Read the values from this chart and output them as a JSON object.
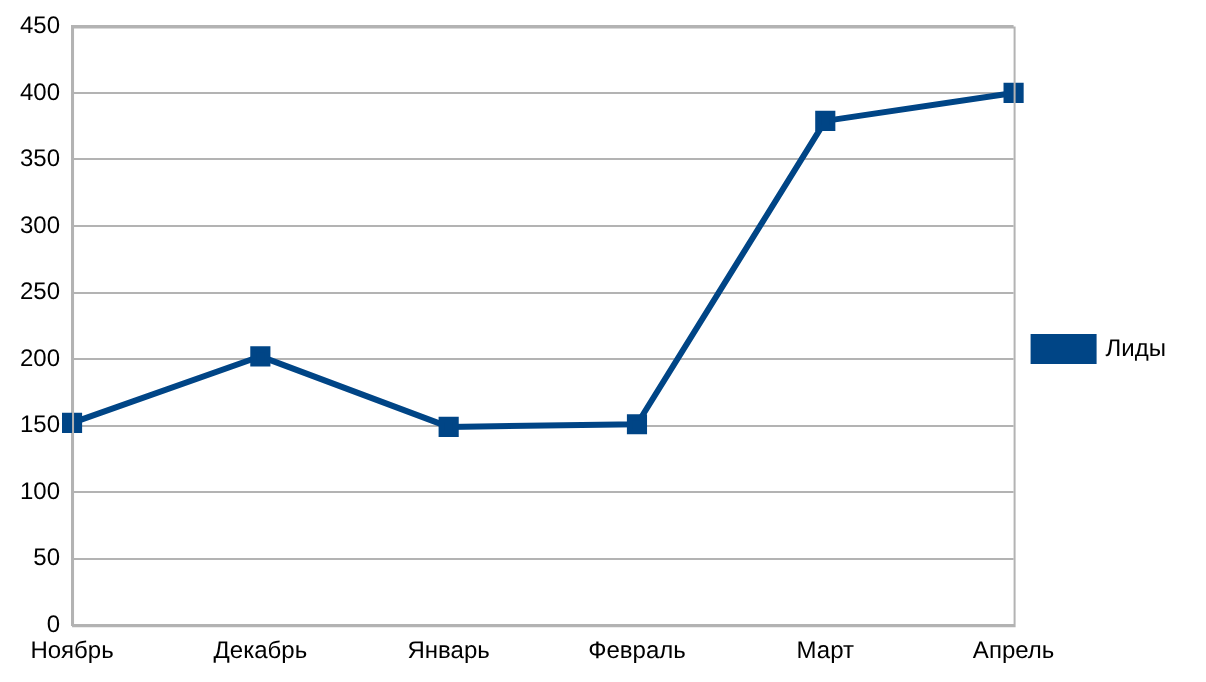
{
  "chart_data": {
    "type": "line",
    "categories": [
      "Ноябрь",
      "Декабрь",
      "Январь",
      "Февраль",
      "Март",
      "Апрель"
    ],
    "series": [
      {
        "name": "Лиды",
        "color": "#004586",
        "values": [
          152,
          202,
          149,
          151,
          379,
          400
        ]
      }
    ],
    "ylim": [
      0,
      450
    ],
    "yticks": [
      0,
      50,
      100,
      150,
      200,
      250,
      300,
      350,
      400,
      450
    ],
    "grid": "y",
    "legend": "right",
    "marker": "square",
    "line_style": "solid"
  }
}
